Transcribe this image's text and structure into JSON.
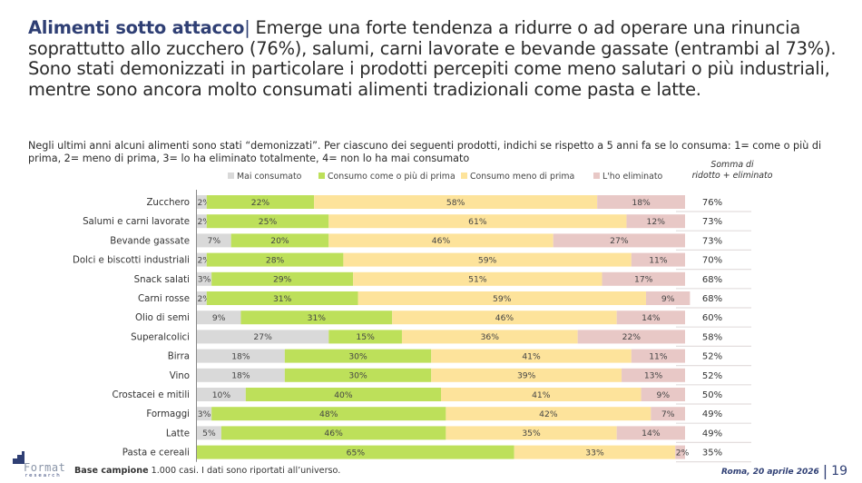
{
  "headline": {
    "title": "Alimenti sotto attacco",
    "separator": "|",
    "text": " Emerge una forte tendenza a ridurre o ad operare una rinuncia soprattutto allo zucchero (76%), salumi, carni lavorate e bevande gassate (entrambi al 73%). Sono stati demonizzati in particolare i prodotti percepiti come meno salutari o più industriali, mentre sono ancora molto consumati alimenti tradizionali come pasta e latte."
  },
  "question": "Negli ultimi anni alcuni alimenti sono stati “demonizzati”. Per ciascuno dei seguenti prodotti, indichi se rispetto a 5 anni fa se lo consuma: 1= come o più di prima, 2= meno di prima, 3= lo ha eliminato totalmente, 4= non lo ha mai consumato",
  "sum_header": {
    "line1": "Somma di",
    "line2": "ridotto + eliminato"
  },
  "colors": {
    "mai_consumato": "#d9d9d9",
    "come_o_piu": "#bde05a",
    "meno_di_prima": "#fde39b",
    "eliminato": "#e8c8c6",
    "brand": "#2f3f74"
  },
  "chart_data": {
    "type": "bar",
    "orientation": "horizontal",
    "stacked": true,
    "xlim": [
      0,
      100
    ],
    "unit": "%",
    "legend_position": "top",
    "categories": [
      "Zucchero",
      "Salumi e carni lavorate",
      "Bevande gassate",
      "Dolci e biscotti industriali",
      "Snack salati",
      "Carni rosse",
      "Olio di semi",
      "Superalcolici",
      "Birra",
      "Vino",
      "Crostacei e mitili",
      "Formaggi",
      "Latte",
      "Pasta e cereali"
    ],
    "series": [
      {
        "name": "Mai consumato",
        "color_key": "mai_consumato",
        "values": [
          2,
          2,
          7,
          2,
          3,
          2,
          9,
          27,
          18,
          18,
          10,
          3,
          5,
          0
        ]
      },
      {
        "name": "Consumo come o più di prima",
        "color_key": "come_o_piu",
        "values": [
          22,
          25,
          20,
          28,
          29,
          31,
          31,
          15,
          30,
          30,
          40,
          48,
          46,
          65
        ]
      },
      {
        "name": "Consumo meno di prima",
        "color_key": "meno_di_prima",
        "values": [
          58,
          61,
          46,
          59,
          51,
          59,
          46,
          36,
          41,
          39,
          41,
          42,
          35,
          33
        ]
      },
      {
        "name": "L'ho eliminato",
        "color_key": "eliminato",
        "values": [
          18,
          12,
          27,
          11,
          17,
          9,
          14,
          22,
          11,
          13,
          9,
          7,
          14,
          2
        ]
      }
    ],
    "sum_reduced_eliminated": {
      "label": "Somma di ridotto + eliminato",
      "values": [
        76,
        73,
        73,
        70,
        68,
        68,
        60,
        58,
        52,
        52,
        50,
        49,
        49,
        35
      ]
    },
    "show_labels_series": [
      true,
      true,
      true,
      true
    ],
    "hide_label_for_series_in_rows": {
      "0": [
        13
      ]
    }
  },
  "footer": {
    "base_label": "Base campione",
    "base_text": " 1.000 casi. I dati sono riportati all’universo.",
    "place_date": "Roma, 20 aprile 2026",
    "separator": "|",
    "page": "19",
    "logo_word": "Format",
    "logo_sub": "research"
  }
}
